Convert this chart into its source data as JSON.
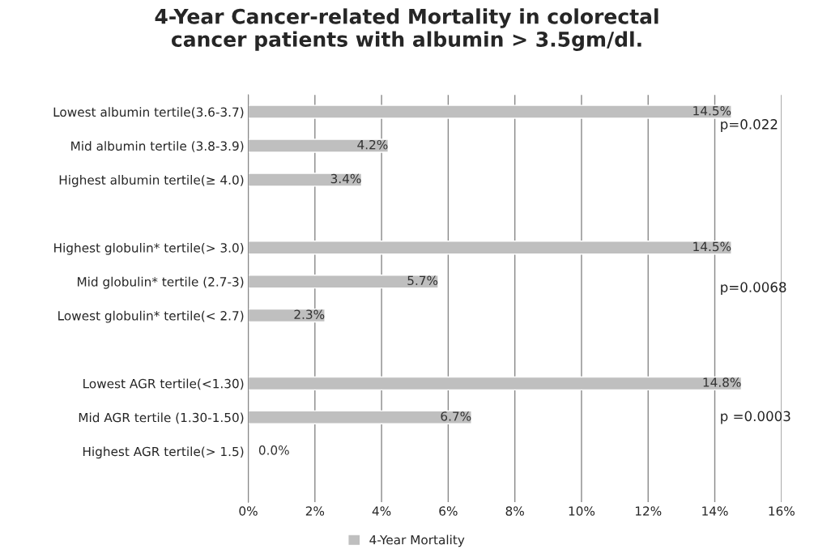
{
  "chart_data": {
    "type": "bar",
    "orientation": "horizontal",
    "title": "4-Year Cancer-related Mortality in colorectal\ncancer patients with albumin > 3.5gm/dl.",
    "categories": [
      "Lowest albumin tertile(3.6-3.7)",
      "Mid albumin tertile (3.8-3.9)",
      "Highest albumin tertile(≥ 4.0)",
      null,
      "Highest globulin* tertile(> 3.0)",
      "Mid globulin* tertile (2.7-3)",
      "Lowest globulin* tertile(< 2.7)",
      null,
      "Lowest AGR tertile(<1.30)",
      "Mid AGR tertile (1.30-1.50)",
      "Highest AGR tertile(> 1.5)",
      null
    ],
    "series": [
      {
        "name": "4-Year Mortality",
        "color": "#bfbfbf",
        "values": [
          14.5,
          4.2,
          3.4,
          null,
          14.5,
          5.7,
          2.3,
          null,
          14.8,
          6.7,
          0.0,
          null
        ],
        "value_labels": [
          "14.5%",
          "4.2%",
          "3.4%",
          null,
          "14.5%",
          "5.7%",
          "2.3%",
          null,
          "14.8%",
          "6.7%",
          "0.0%",
          null
        ]
      }
    ],
    "xlim": [
      0,
      16
    ],
    "xticks": [
      {
        "value": 0,
        "label": "0%"
      },
      {
        "value": 2,
        "label": "2%"
      },
      {
        "value": 4,
        "label": "4%"
      },
      {
        "value": 6,
        "label": "6%"
      },
      {
        "value": 8,
        "label": "8%"
      },
      {
        "value": 10,
        "label": "10%"
      },
      {
        "value": 12,
        "label": "12%"
      },
      {
        "value": 14,
        "label": "14%"
      },
      {
        "value": 16,
        "label": "16%"
      }
    ],
    "grid": "x",
    "legend": "bottom",
    "annotations": [
      "p=0.022",
      "p=0.0068",
      "p =0.0003"
    ]
  }
}
